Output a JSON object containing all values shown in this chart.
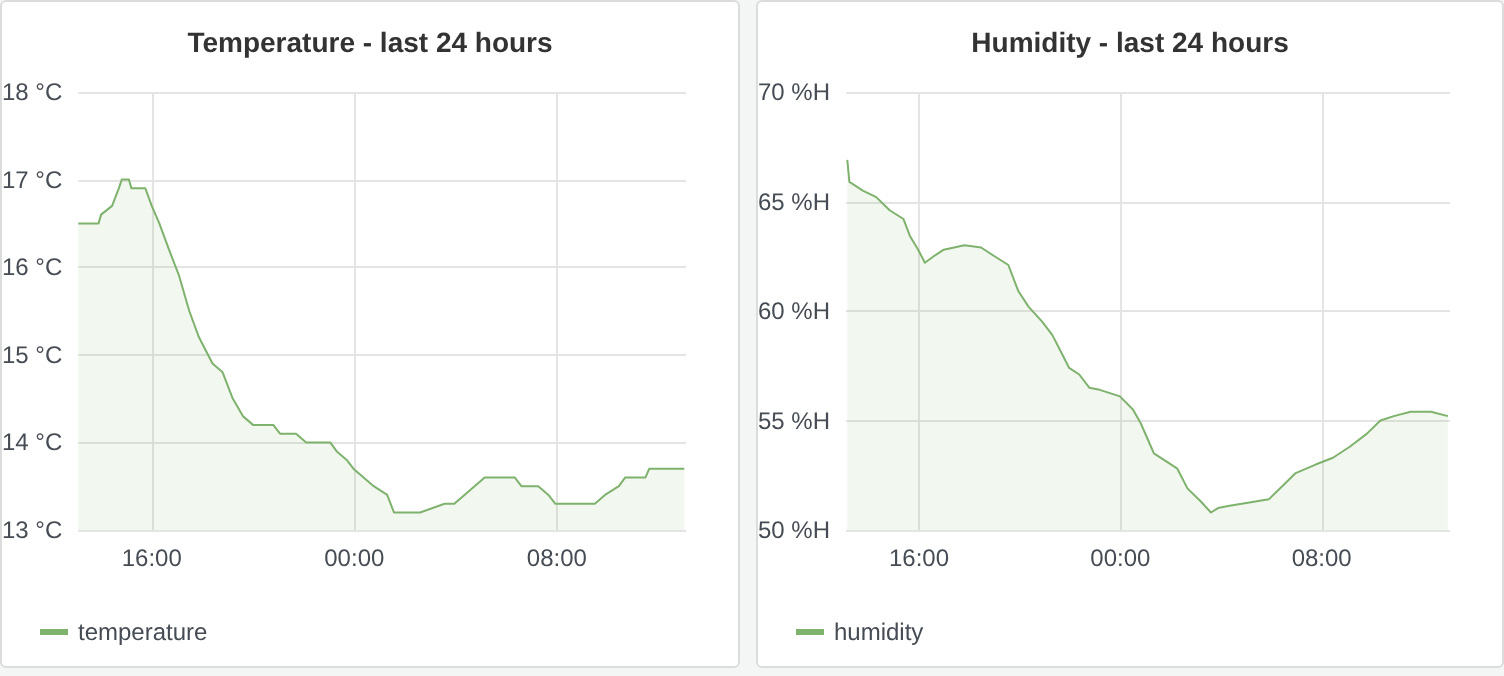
{
  "chart_data": [
    {
      "type": "area",
      "title": "Temperature - last 24 hours",
      "legend": "bottom left",
      "grid": true,
      "xlim": [
        "--01-01T13:06",
        "--01-02T13:06"
      ],
      "xticks": [
        {
          "value": "--01-01T16:00",
          "label": "16:00"
        },
        {
          "value": "--01-02T00:00",
          "label": "00:00"
        },
        {
          "value": "--01-02T08:00",
          "label": "08:00"
        }
      ],
      "ylim": [
        13,
        18
      ],
      "yticks": [
        {
          "value": 13,
          "label": "13 °C"
        },
        {
          "value": 14,
          "label": "14 °C"
        },
        {
          "value": 15,
          "label": "15 °C"
        },
        {
          "value": 16,
          "label": "16 °C"
        },
        {
          "value": 17,
          "label": "17 °C"
        },
        {
          "value": 18,
          "label": "18 °C"
        }
      ],
      "series": [
        {
          "name": "temperature",
          "color": "#7eb26d",
          "x": [
            "--01-01T13:06",
            "--01-01T13:54",
            "--01-01T14:00",
            "--01-01T14:26",
            "--01-01T14:42",
            "--01-01T14:49",
            "--01-01T15:06",
            "--01-01T15:12",
            "--01-01T15:45",
            "--01-01T16:00",
            "--01-01T16:18",
            "--01-01T16:41",
            "--01-01T17:05",
            "--01-01T17:29",
            "--01-01T17:52",
            "--01-01T18:24",
            "--01-01T18:48",
            "--01-01T19:12",
            "--01-01T19:36",
            "--01-01T20:00",
            "--01-01T20:48",
            "--01-01T21:04",
            "--01-01T21:42",
            "--01-01T22:06",
            "--01-01T23:03",
            "--01-01T23:18",
            "--01-01T23:42",
            "--01-01T23:58",
            "--01-02T00:22",
            "--01-02T00:46",
            "--01-02T01:18",
            "--01-02T01:34",
            "--01-02T02:36",
            "--01-02T03:34",
            "--01-02T03:57",
            "--01-02T04:21",
            "--01-02T04:45",
            "--01-02T05:09",
            "--01-02T06:20",
            "--01-02T06:36",
            "--01-02T07:16",
            "--01-02T07:40",
            "--01-02T07:56",
            "--01-02T09:30",
            "--01-02T09:54",
            "--01-02T10:27",
            "--01-02T10:42",
            "--01-02T11:30",
            "--01-02T11:39",
            "--01-02T13:02"
          ],
          "values": [
            16.5,
            16.5,
            16.6,
            16.7,
            16.9,
            17.0,
            17.0,
            16.9,
            16.9,
            16.7,
            16.5,
            16.2,
            15.9,
            15.5,
            15.2,
            14.9,
            14.8,
            14.5,
            14.3,
            14.2,
            14.2,
            14.1,
            14.1,
            14.0,
            14.0,
            13.9,
            13.8,
            13.7,
            13.6,
            13.5,
            13.4,
            13.2,
            13.2,
            13.3,
            13.3,
            13.4,
            13.5,
            13.6,
            13.6,
            13.5,
            13.5,
            13.4,
            13.3,
            13.3,
            13.4,
            13.5,
            13.6,
            13.6,
            13.7,
            13.7
          ]
        }
      ]
    },
    {
      "type": "area",
      "title": "Humidity - last 24 hours",
      "legend": "bottom left",
      "grid": true,
      "xlim": [
        "--01-01T13:06",
        "--01-02T13:06"
      ],
      "xticks": [
        {
          "value": "--01-01T16:00",
          "label": "16:00"
        },
        {
          "value": "--01-02T00:00",
          "label": "00:00"
        },
        {
          "value": "--01-02T08:00",
          "label": "08:00"
        }
      ],
      "ylim": [
        50,
        70
      ],
      "yticks": [
        {
          "value": 50,
          "label": "50 %H"
        },
        {
          "value": 55,
          "label": "55 %H"
        },
        {
          "value": 60,
          "label": "60 %H"
        },
        {
          "value": 65,
          "label": "65 %H"
        },
        {
          "value": 70,
          "label": "70 %H"
        }
      ],
      "series": [
        {
          "name": "humidity",
          "color": "#7eb26d",
          "x": [
            "--01-01T13:09",
            "--01-01T13:14",
            "--01-01T13:46",
            "--01-01T14:18",
            "--01-01T14:50",
            "--01-01T15:23",
            "--01-01T15:39",
            "--01-01T15:58",
            "--01-01T16:14",
            "--01-01T16:35",
            "--01-01T16:59",
            "--01-01T17:48",
            "--01-01T18:28",
            "--01-01T19:00",
            "--01-01T19:33",
            "--01-01T19:57",
            "--01-01T20:21",
            "--01-01T20:54",
            "--01-01T21:18",
            "--01-01T21:42",
            "--01-01T21:58",
            "--01-01T22:22",
            "--01-01T22:46",
            "--01-01T23:11",
            "--01-01T23:59",
            "--01-02T00:30",
            "--01-02T00:48",
            "--01-02T01:04",
            "--01-02T01:20",
            "--01-02T01:44",
            "--01-02T02:16",
            "--01-02T02:40",
            "--01-02T03:12",
            "--01-02T03:36",
            "--01-02T03:53",
            "--01-02T04:17",
            "--01-02T05:22",
            "--01-02T05:54",
            "--01-02T06:26",
            "--01-02T06:58",
            "--01-02T07:47",
            "--01-02T08:27",
            "--01-02T09:07",
            "--01-02T09:48",
            "--01-02T10:20",
            "--01-02T10:52",
            "--01-02T11:32",
            "--01-02T12:21",
            "--01-02T13:01"
          ],
          "values": [
            66.9,
            65.9,
            65.5,
            65.2,
            64.6,
            64.2,
            63.4,
            62.8,
            62.2,
            62.5,
            62.8,
            63.0,
            62.9,
            62.5,
            62.1,
            60.9,
            60.2,
            59.5,
            58.9,
            58.0,
            57.4,
            57.1,
            56.5,
            56.4,
            56.1,
            55.5,
            54.9,
            54.2,
            53.5,
            53.2,
            52.8,
            51.9,
            51.3,
            50.8,
            51.0,
            51.1,
            51.3,
            51.4,
            52.0,
            52.6,
            53.0,
            53.3,
            53.8,
            54.4,
            55.0,
            55.2,
            55.4,
            55.4,
            55.2
          ]
        }
      ]
    }
  ]
}
